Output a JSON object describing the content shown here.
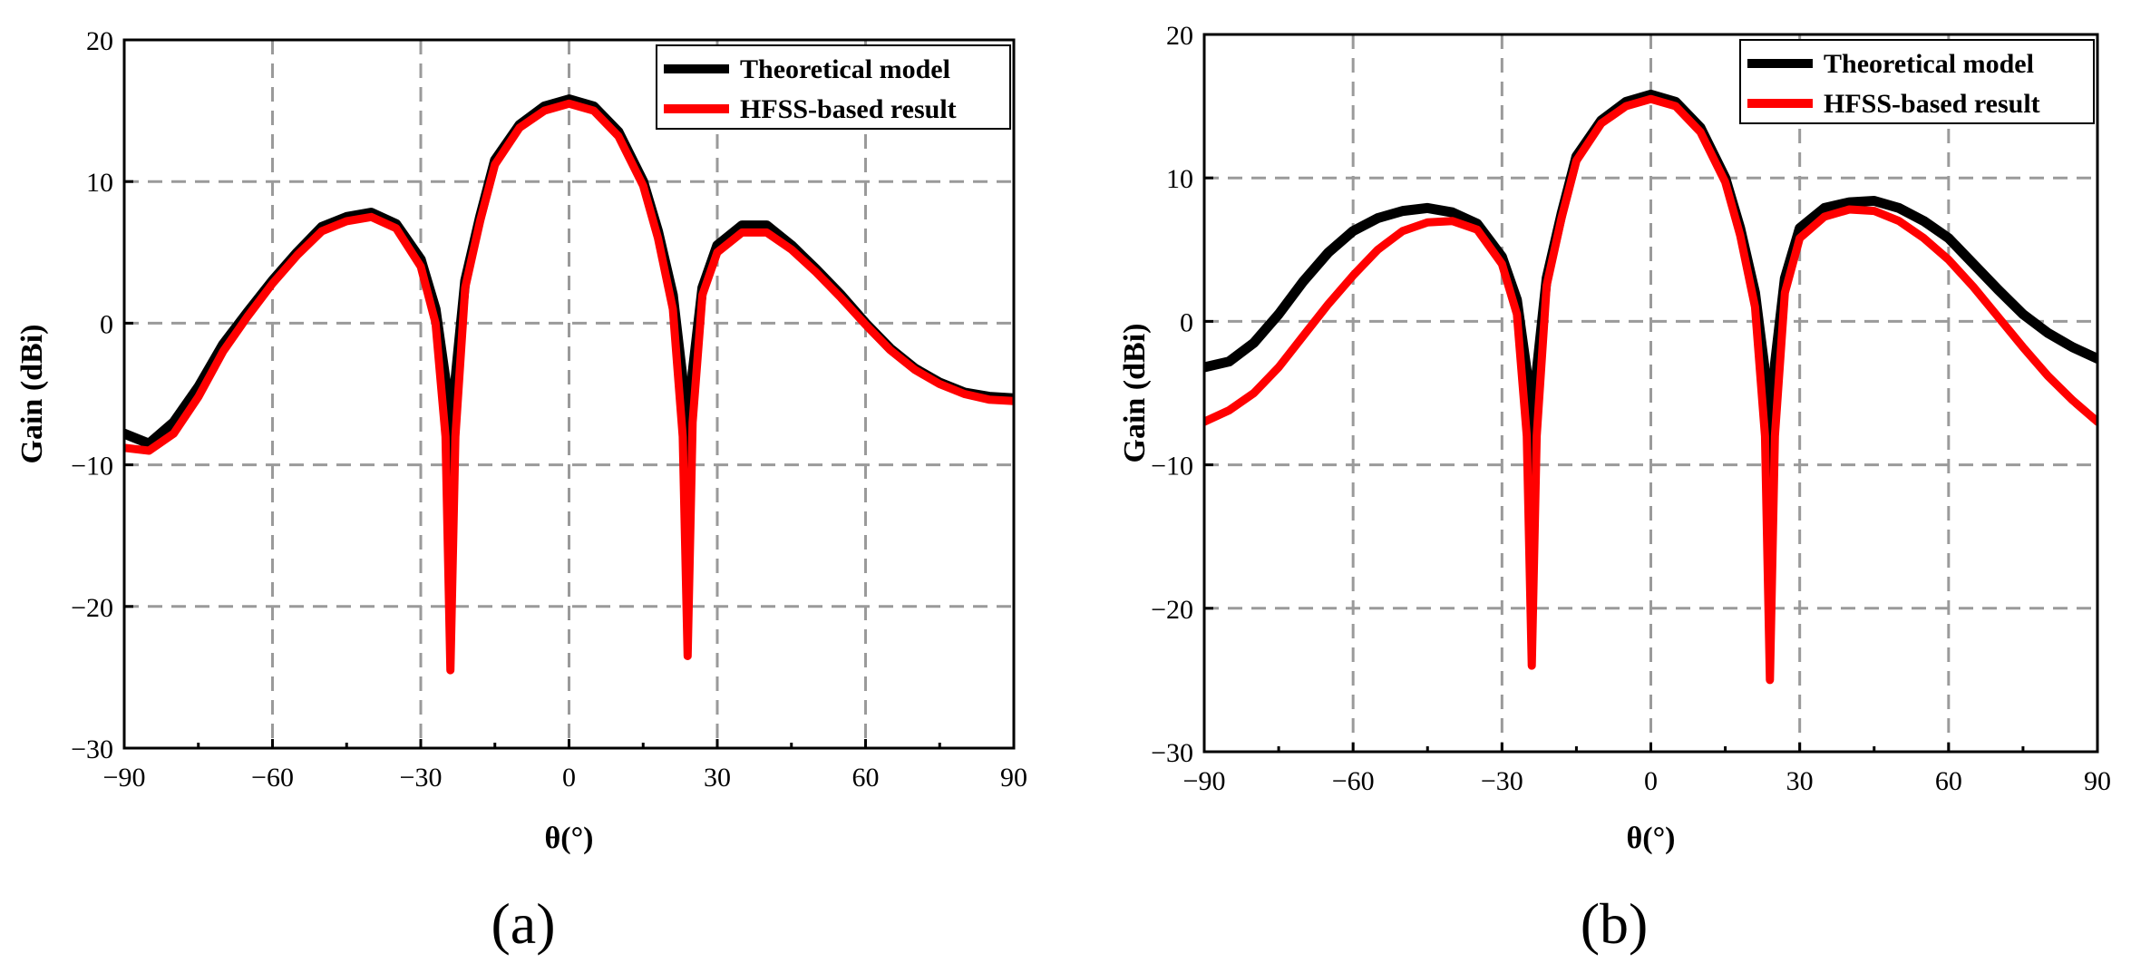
{
  "chart_data": [
    {
      "type": "line",
      "panel_label": "(a)",
      "xlabel": "θ(°)",
      "ylabel": "Gain (dBi)",
      "xlim": [
        -90,
        90
      ],
      "ylim": [
        -30,
        20
      ],
      "xticks": [
        -90,
        -60,
        -30,
        0,
        30,
        60,
        90
      ],
      "xtick_labels": [
        "−90",
        "−60",
        "−30",
        "0",
        "30",
        "60",
        "90"
      ],
      "yticks": [
        -30,
        -20,
        -10,
        0,
        10,
        20
      ],
      "ytick_labels": [
        "−30",
        "−20",
        "−10",
        "0",
        "10",
        "20"
      ],
      "grid": true,
      "legend_position": "top-right",
      "series": [
        {
          "name": "Theoretical model",
          "color": "#000000",
          "x": [
            -90,
            -85,
            -80,
            -75,
            -70,
            -65,
            -60,
            -55,
            -50,
            -45,
            -40,
            -35,
            -30,
            -27,
            -25,
            -24,
            -23,
            -21,
            -18,
            -15,
            -10,
            -5,
            0,
            5,
            10,
            15,
            18,
            21,
            23,
            24,
            25,
            27,
            30,
            35,
            40,
            45,
            50,
            55,
            60,
            65,
            70,
            75,
            80,
            85,
            90
          ],
          "y": [
            -7.8,
            -8.5,
            -7.0,
            -4.5,
            -1.5,
            0.8,
            3.0,
            5.0,
            6.8,
            7.5,
            7.8,
            7.0,
            4.5,
            1.0,
            -4.0,
            -10.5,
            -4.0,
            3.0,
            7.5,
            11.5,
            14.0,
            15.3,
            15.8,
            15.3,
            13.5,
            10.0,
            6.5,
            2.0,
            -4.0,
            -10.0,
            -3.5,
            2.5,
            5.5,
            6.9,
            6.9,
            5.5,
            3.8,
            2.0,
            0.0,
            -1.8,
            -3.2,
            -4.2,
            -4.9,
            -5.2,
            -5.3
          ]
        },
        {
          "name": "HFSS-based result",
          "color": "#ff0000",
          "x": [
            -90,
            -85,
            -80,
            -75,
            -70,
            -65,
            -60,
            -55,
            -50,
            -45,
            -40,
            -35,
            -30,
            -27,
            -25,
            -24,
            -23,
            -21,
            -18,
            -15,
            -10,
            -5,
            0,
            5,
            10,
            15,
            18,
            21,
            23,
            24,
            25,
            27,
            30,
            35,
            40,
            45,
            50,
            55,
            60,
            65,
            70,
            75,
            80,
            85,
            90
          ],
          "y": [
            -8.8,
            -9.0,
            -7.8,
            -5.2,
            -2.0,
            0.5,
            2.8,
            4.8,
            6.5,
            7.2,
            7.5,
            6.7,
            4.0,
            0.0,
            -8.0,
            -24.5,
            -8.0,
            2.5,
            7.2,
            11.2,
            13.8,
            15.0,
            15.5,
            15.0,
            13.2,
            9.7,
            6.0,
            1.0,
            -8.0,
            -23.5,
            -7.0,
            2.0,
            5.0,
            6.4,
            6.4,
            5.2,
            3.6,
            1.8,
            -0.1,
            -1.9,
            -3.3,
            -4.3,
            -5.0,
            -5.4,
            -5.5
          ]
        }
      ]
    },
    {
      "type": "line",
      "panel_label": "(b)",
      "xlabel": "θ(°)",
      "ylabel": "Gain (dBi)",
      "xlim": [
        -90,
        90
      ],
      "ylim": [
        -30,
        20
      ],
      "xticks": [
        -90,
        -60,
        -30,
        0,
        30,
        60,
        90
      ],
      "xtick_labels": [
        "−90",
        "−60",
        "−30",
        "0",
        "30",
        "60",
        "90"
      ],
      "yticks": [
        -30,
        -20,
        -10,
        0,
        10,
        20
      ],
      "ytick_labels": [
        "−30",
        "−20",
        "−10",
        "0",
        "10",
        "20"
      ],
      "grid": true,
      "legend_position": "top-right",
      "series": [
        {
          "name": "Theoretical model",
          "color": "#000000",
          "x": [
            -90,
            -85,
            -80,
            -75,
            -70,
            -65,
            -60,
            -55,
            -50,
            -45,
            -40,
            -35,
            -30,
            -27,
            -25,
            -24,
            -23,
            -21,
            -18,
            -15,
            -10,
            -5,
            0,
            5,
            10,
            15,
            18,
            21,
            23,
            24,
            25,
            27,
            30,
            35,
            40,
            45,
            50,
            55,
            60,
            65,
            70,
            75,
            80,
            85,
            90
          ],
          "y": [
            -3.2,
            -2.8,
            -1.5,
            0.5,
            2.8,
            4.8,
            6.3,
            7.2,
            7.7,
            7.9,
            7.6,
            6.8,
            4.5,
            1.5,
            -3.5,
            -11.5,
            -3.5,
            3.0,
            7.5,
            11.5,
            14.0,
            15.3,
            15.8,
            15.3,
            13.5,
            10.0,
            6.5,
            2.0,
            -3.5,
            -11.0,
            -3.0,
            3.0,
            6.5,
            7.9,
            8.3,
            8.4,
            7.9,
            7.0,
            5.8,
            4.0,
            2.2,
            0.5,
            -0.8,
            -1.8,
            -2.6
          ]
        },
        {
          "name": "HFSS-based result",
          "color": "#ff0000",
          "x": [
            -90,
            -85,
            -80,
            -75,
            -70,
            -65,
            -60,
            -55,
            -50,
            -45,
            -40,
            -35,
            -30,
            -27,
            -25,
            -24,
            -23,
            -21,
            -18,
            -15,
            -10,
            -5,
            0,
            5,
            10,
            15,
            18,
            21,
            23,
            24,
            25,
            27,
            30,
            35,
            40,
            45,
            50,
            55,
            60,
            65,
            70,
            75,
            80,
            85,
            90
          ],
          "y": [
            -7.0,
            -6.2,
            -5.0,
            -3.2,
            -1.0,
            1.2,
            3.2,
            5.0,
            6.3,
            6.9,
            7.0,
            6.4,
            4.0,
            0.5,
            -8.0,
            -24.0,
            -8.0,
            2.5,
            7.2,
            11.2,
            13.8,
            15.0,
            15.5,
            15.0,
            13.2,
            9.7,
            6.0,
            1.0,
            -8.0,
            -25.0,
            -8.0,
            2.0,
            5.8,
            7.3,
            7.8,
            7.7,
            7.0,
            5.8,
            4.3,
            2.4,
            0.3,
            -1.8,
            -3.8,
            -5.5,
            -7.0
          ]
        }
      ]
    }
  ]
}
